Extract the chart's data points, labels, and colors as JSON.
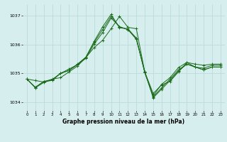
{
  "background_color": "#d6eeee",
  "grid_color": "#b8d8d8",
  "line_color": "#1a6b1a",
  "title": "Graphe pression niveau de la mer (hPa)",
  "xlim": [
    -0.5,
    23.5
  ],
  "ylim": [
    1033.7,
    1037.4
  ],
  "yticks": [
    1034,
    1035,
    1036,
    1037
  ],
  "xticks": [
    0,
    1,
    2,
    3,
    4,
    5,
    6,
    7,
    8,
    9,
    10,
    11,
    12,
    13,
    14,
    15,
    16,
    17,
    18,
    19,
    20,
    21,
    22,
    23
  ],
  "series": [
    [
      1034.8,
      1034.75,
      1034.7,
      1034.8,
      1034.85,
      1035.05,
      1035.25,
      1035.55,
      1035.9,
      1036.15,
      1036.55,
      1036.98,
      1036.6,
      1036.55,
      1035.05,
      1034.3,
      1034.6,
      1034.72,
      1035.05,
      1035.38,
      1035.32,
      1035.28,
      1035.32,
      1035.32
    ],
    [
      1034.8,
      1034.52,
      1034.72,
      1034.78,
      1035.0,
      1035.1,
      1035.32,
      1035.56,
      1036.12,
      1036.62,
      1037.05,
      1036.58,
      1036.55,
      1036.22,
      1035.02,
      1034.22,
      1034.62,
      1034.85,
      1035.2,
      1035.38,
      1035.22,
      1035.18,
      1035.28,
      1035.28
    ],
    [
      1034.8,
      1034.5,
      1034.72,
      1034.75,
      1035.0,
      1035.1,
      1035.3,
      1035.56,
      1036.08,
      1036.52,
      1036.98,
      1036.62,
      1036.52,
      1036.22,
      1035.05,
      1034.18,
      1034.5,
      1034.8,
      1035.12,
      1035.32,
      1035.22,
      1035.12,
      1035.22,
      1035.22
    ],
    [
      1034.8,
      1034.5,
      1034.68,
      1034.78,
      1035.0,
      1035.15,
      1035.3,
      1035.52,
      1036.02,
      1036.42,
      1036.92,
      1036.62,
      1036.52,
      1036.18,
      1035.05,
      1034.15,
      1034.45,
      1034.75,
      1035.08,
      1035.32,
      1035.22,
      1035.12,
      1035.22,
      1035.22
    ]
  ]
}
